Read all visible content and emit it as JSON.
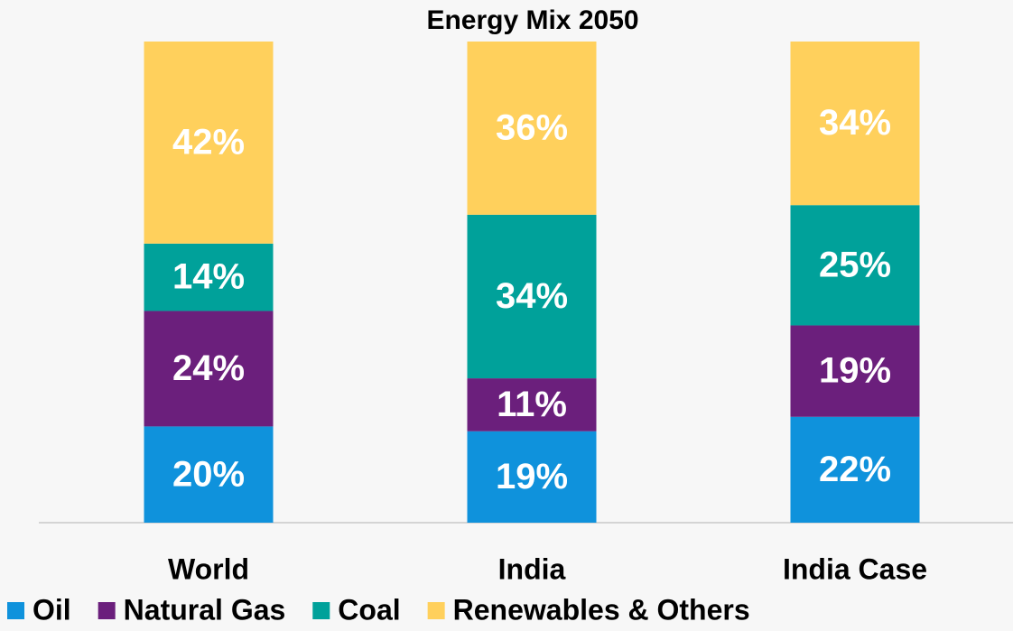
{
  "chart_data": {
    "type": "stacked_bar",
    "title": "Energy Mix 2050",
    "categories": [
      "World",
      "India",
      "India Case"
    ],
    "ylim": [
      0,
      100
    ],
    "series": [
      {
        "name": "Oil",
        "color": "#0f92dc",
        "values": [
          20,
          19,
          22
        ],
        "value_labels": [
          "20%",
          "19%",
          "22%"
        ]
      },
      {
        "name": "Natural Gas",
        "color": "#6b1f7c",
        "values": [
          24,
          11,
          19
        ],
        "value_labels": [
          "24%",
          "11%",
          "19%"
        ]
      },
      {
        "name": "Coal",
        "color": "#00a19a",
        "values": [
          14,
          34,
          25
        ],
        "value_labels": [
          "14%",
          "34%",
          "25%"
        ]
      },
      {
        "name": "Renewables & Others",
        "color": "#ffd05c",
        "values": [
          42,
          36,
          34
        ],
        "value_labels": [
          "42%",
          "36%",
          "34%"
        ]
      }
    ]
  }
}
